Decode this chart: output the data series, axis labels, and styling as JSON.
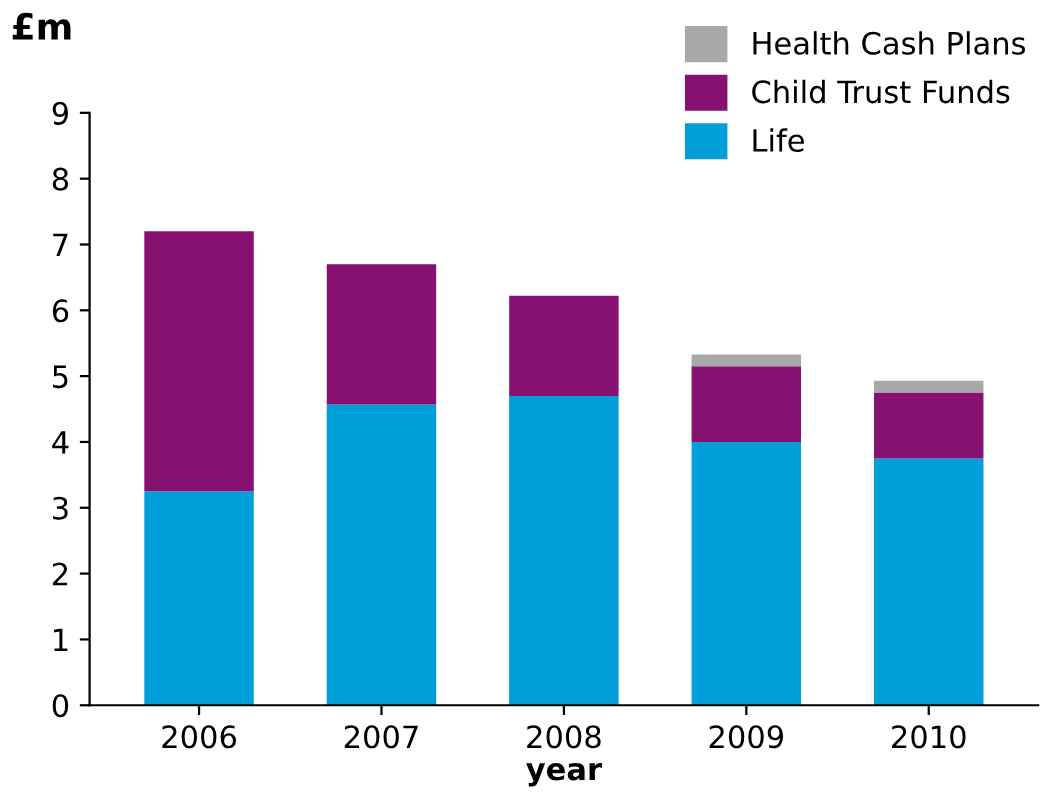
{
  "chart_data": {
    "type": "bar",
    "stacked": true,
    "ylabel": "£m",
    "xlabel": "year",
    "categories": [
      "2006",
      "2007",
      "2008",
      "2009",
      "2010"
    ],
    "series": [
      {
        "name": "Life",
        "color": "#009fda",
        "values": [
          3.25,
          4.57,
          4.7,
          4.0,
          3.75
        ]
      },
      {
        "name": "Child Trust Funds",
        "color": "#861170",
        "values": [
          3.95,
          2.13,
          1.52,
          1.15,
          1.0
        ]
      },
      {
        "name": "Health Cash Plans",
        "color": "#a7a8aa",
        "values": [
          0,
          0,
          0,
          0.18,
          0.18
        ]
      }
    ],
    "ylim": [
      0,
      9
    ],
    "yticks": [
      0,
      1,
      2,
      3,
      4,
      5,
      6,
      7,
      8,
      9
    ],
    "grid": false,
    "legend": "top right"
  }
}
